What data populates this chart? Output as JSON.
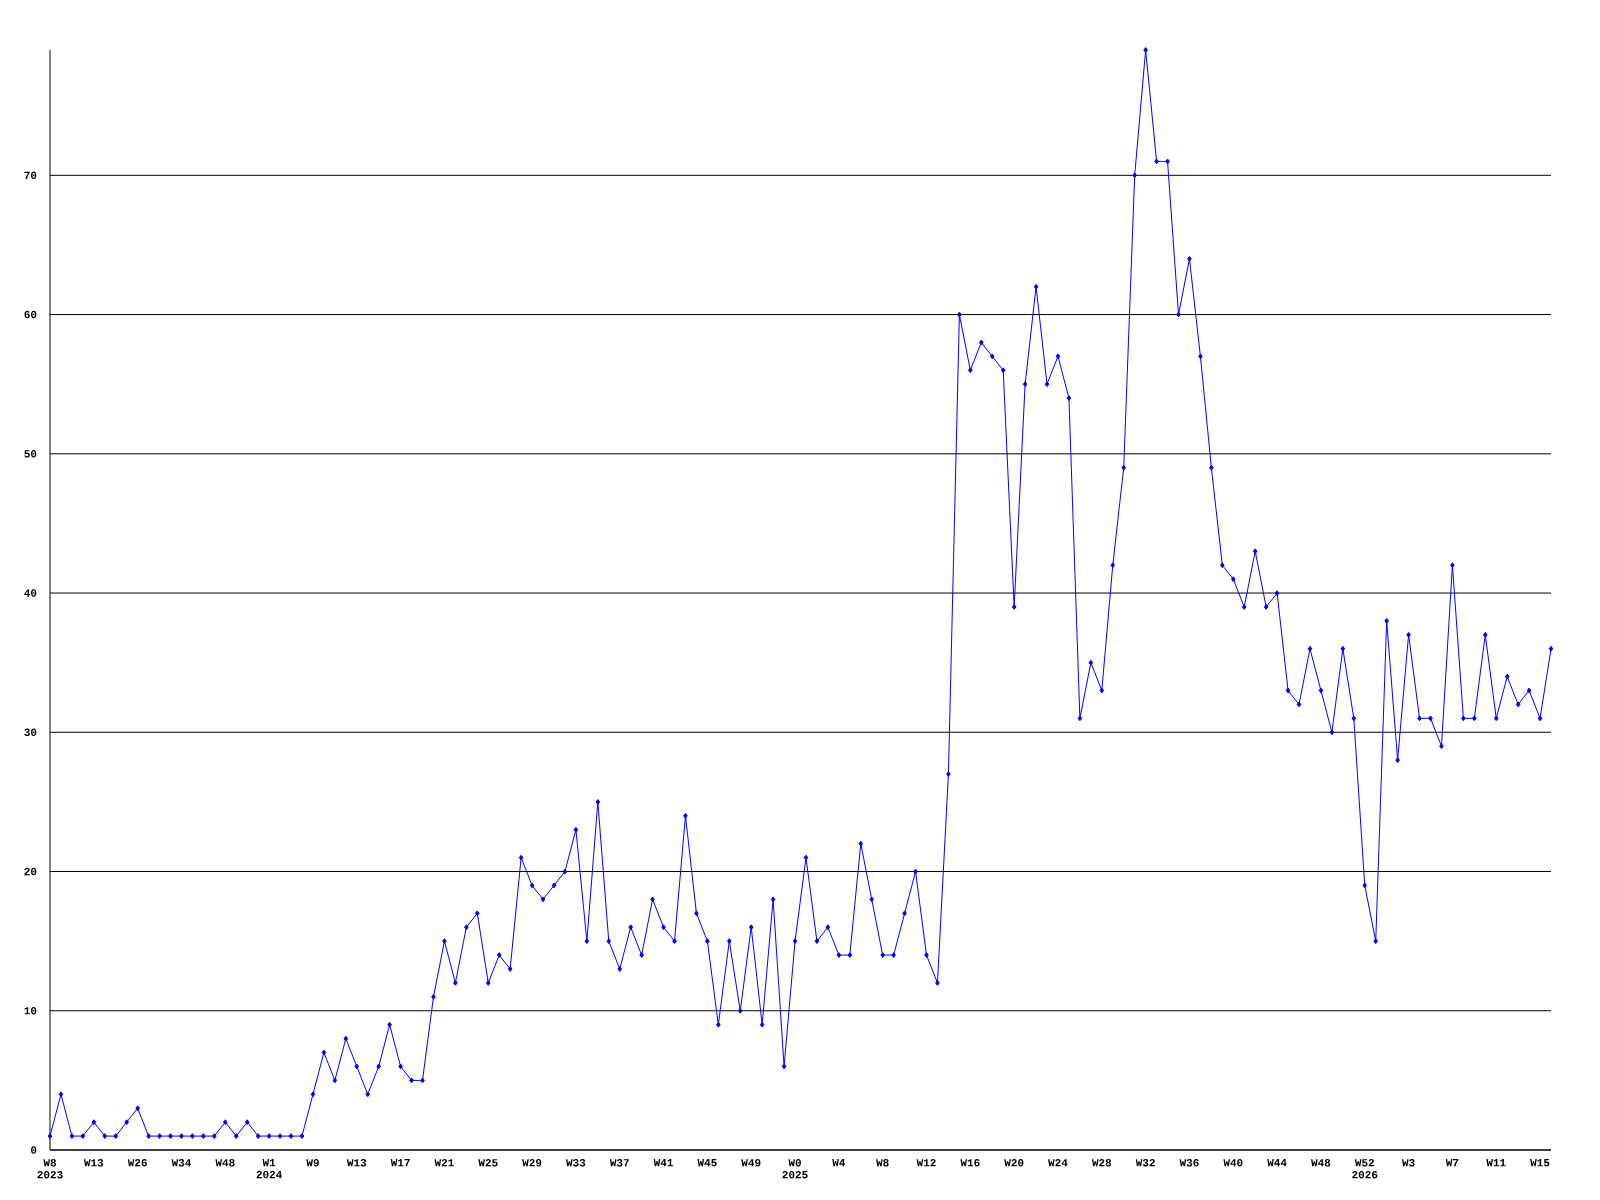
{
  "chart_data": {
    "type": "line",
    "categories": [
      "W8 2023",
      null,
      null,
      null,
      "W13",
      null,
      null,
      null,
      "W26",
      null,
      null,
      null,
      "W34",
      null,
      null,
      null,
      "W48",
      null,
      null,
      null,
      "W1 2024",
      null,
      null,
      null,
      "W9",
      null,
      null,
      null,
      "W13",
      null,
      null,
      null,
      "W17",
      null,
      null,
      null,
      "W21",
      null,
      null,
      null,
      "W25",
      null,
      null,
      null,
      "W29",
      null,
      null,
      null,
      "W33",
      null,
      null,
      null,
      "W37",
      null,
      null,
      null,
      "W41",
      null,
      null,
      null,
      "W45",
      null,
      null,
      null,
      "W49",
      null,
      null,
      null,
      "W0 2025",
      null,
      null,
      null,
      "W4",
      null,
      null,
      null,
      "W8",
      null,
      null,
      null,
      "W12",
      null,
      null,
      null,
      "W16",
      null,
      null,
      null,
      "W20",
      null,
      null,
      null,
      "W24",
      null,
      null,
      null,
      "W28",
      null,
      null,
      null,
      "W32",
      null,
      null,
      null,
      "W36",
      null,
      null,
      null,
      "W40",
      null,
      null,
      null,
      "W44",
      null,
      null,
      null,
      "W48",
      null,
      null,
      null,
      "W52 2026",
      null,
      null,
      null,
      "W3",
      null,
      null,
      null,
      "W7",
      null,
      null,
      null,
      "W11",
      null,
      null,
      null,
      "W15",
      null
    ],
    "series": [
      {
        "color": "#0000ff",
        "values": [
          1,
          4,
          1,
          1,
          2,
          1,
          1,
          2,
          3,
          1,
          1,
          1,
          1,
          1,
          1,
          1,
          2,
          1,
          2,
          1,
          1,
          1,
          1,
          1,
          4,
          7,
          5,
          8,
          6,
          4,
          6,
          9,
          6,
          5,
          5,
          11,
          15,
          12,
          16,
          17,
          12,
          14,
          13,
          21,
          19,
          18,
          19,
          20,
          23,
          15,
          25,
          15,
          13,
          16,
          14,
          18,
          16,
          15,
          24,
          17,
          15,
          9,
          15,
          10,
          16,
          9,
          18,
          6,
          15,
          21,
          15,
          16,
          14,
          14,
          22,
          18,
          14,
          14,
          17,
          20,
          14,
          12,
          27,
          60,
          56,
          58,
          57,
          56,
          39,
          55,
          62,
          55,
          57,
          54,
          31,
          35,
          33,
          42,
          49,
          70,
          79,
          71,
          71,
          60,
          64,
          57,
          49,
          42,
          41,
          39,
          43,
          39,
          40,
          33,
          32,
          36,
          33,
          30,
          36,
          31,
          19,
          15,
          38,
          28,
          37,
          31,
          31,
          29,
          42,
          31,
          31,
          37,
          31,
          34,
          32,
          33,
          31,
          36
        ]
      }
    ],
    "ylim": [
      0,
      79
    ],
    "yticks": [
      0,
      10,
      20,
      30,
      40,
      50,
      60,
      70
    ],
    "grid": "y",
    "marker": "diamond",
    "line_style": "solid"
  }
}
